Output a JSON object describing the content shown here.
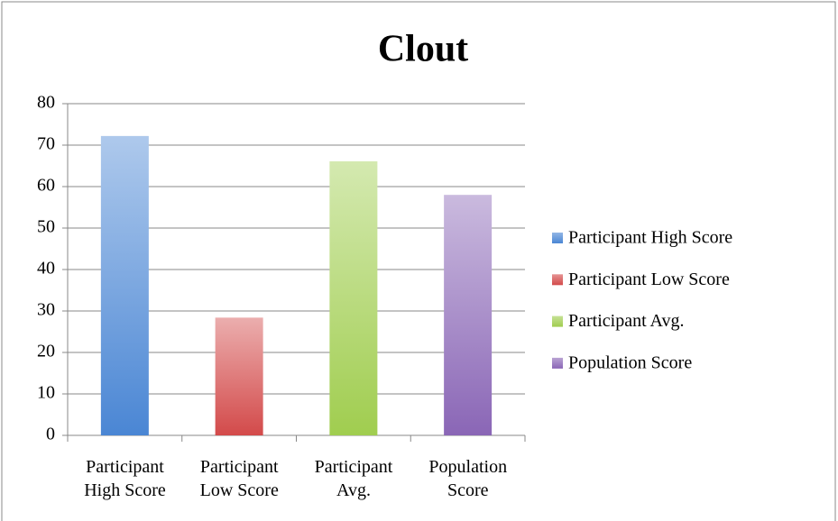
{
  "chart_data": {
    "type": "bar",
    "title": "Clout",
    "categories": [
      "Participant High Score",
      "Participant Low Score",
      "Participant Avg.",
      "Population Score"
    ],
    "values": [
      72.2,
      28.4,
      66.1,
      58.0
    ],
    "colors": [
      "#4a86d4",
      "#d34a4a",
      "#a0cd4f",
      "#8a66b6"
    ],
    "ylim": [
      0,
      80
    ],
    "yticks": [
      0,
      10,
      20,
      30,
      40,
      50,
      60,
      70,
      80
    ],
    "grid": true,
    "legend": "right"
  }
}
